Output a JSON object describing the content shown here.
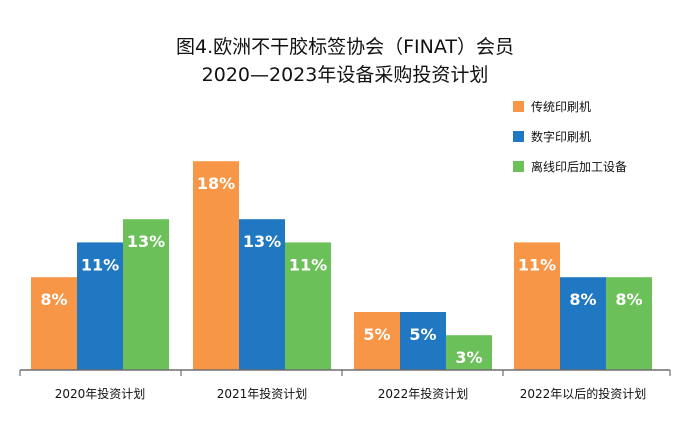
{
  "chart_data": {
    "type": "bar",
    "title": "图4.欧洲不干胶标签协会（FINAT）会员",
    "subtitle": "2020—2023年设备采购投资计划",
    "categories": [
      "2020年投资计划",
      "2021年投资计划",
      "2022年投资计划",
      "2022年以后的投资计划"
    ],
    "series": [
      {
        "name": "传统印刷机",
        "color": "#F79646",
        "values": [
          8,
          18,
          5,
          11
        ],
        "labels": [
          "8%",
          "18%",
          "5%",
          "11%"
        ]
      },
      {
        "name": "数字印刷机",
        "color": "#1F78C1",
        "values": [
          11,
          13,
          5,
          8
        ],
        "labels": [
          "11%",
          "13%",
          "5%",
          "8%"
        ]
      },
      {
        "name": "离线印后加工设备",
        "color": "#6CC05A",
        "values": [
          13,
          11,
          3,
          8
        ],
        "labels": [
          "13%",
          "11%",
          "3%",
          "8%"
        ]
      }
    ],
    "ylim": [
      0,
      19
    ],
    "grid": false,
    "legend": "top-right",
    "xlabel": "",
    "ylabel": ""
  }
}
